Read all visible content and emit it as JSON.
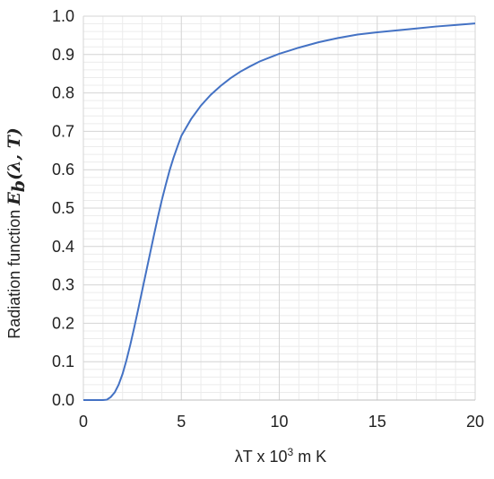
{
  "chart_data": {
    "type": "line",
    "title": "",
    "xlabel": {
      "base": "λT x 10",
      "sup": "3",
      "tail": " m K"
    },
    "ylabel": {
      "text": "Radiation function ",
      "math_main": "E",
      "math_sub": "b",
      "math_args": "(λ, T)"
    },
    "xlim": [
      0,
      20
    ],
    "ylim": [
      0,
      1.0
    ],
    "x_ticks": [
      "0",
      "5",
      "10",
      "15",
      "20"
    ],
    "y_ticks": [
      "0.0",
      "0.1",
      "0.2",
      "0.3",
      "0.4",
      "0.5",
      "0.6",
      "0.7",
      "0.8",
      "0.9",
      "1.0"
    ],
    "grid": true,
    "legend": "none",
    "series": [
      {
        "color": "#4472c4",
        "x": [
          0,
          0.2,
          0.4,
          0.6,
          0.8,
          1.0,
          1.2,
          1.4,
          1.6,
          1.8,
          2.0,
          2.2,
          2.4,
          2.6,
          2.8,
          3.0,
          3.2,
          3.4,
          3.6,
          3.8,
          4.0,
          4.2,
          4.4,
          4.6,
          4.8,
          5.0,
          5.5,
          6.0,
          6.5,
          7.0,
          7.5,
          8.0,
          8.5,
          9.0,
          9.5,
          10.0,
          10.5,
          11.0,
          11.5,
          12.0,
          13.0,
          14.0,
          15.0,
          16.0,
          17.0,
          18.0,
          19.0,
          20.0
        ],
        "values": [
          0,
          0,
          0,
          0,
          0,
          0,
          0.001,
          0.008,
          0.02,
          0.04,
          0.068,
          0.104,
          0.145,
          0.19,
          0.237,
          0.285,
          0.333,
          0.381,
          0.429,
          0.476,
          0.52,
          0.56,
          0.598,
          0.631,
          0.66,
          0.688,
          0.732,
          0.767,
          0.795,
          0.818,
          0.838,
          0.855,
          0.869,
          0.882,
          0.892,
          0.902,
          0.91,
          0.918,
          0.925,
          0.932,
          0.943,
          0.952,
          0.958,
          0.963,
          0.968,
          0.973,
          0.977,
          0.981
        ]
      }
    ]
  }
}
